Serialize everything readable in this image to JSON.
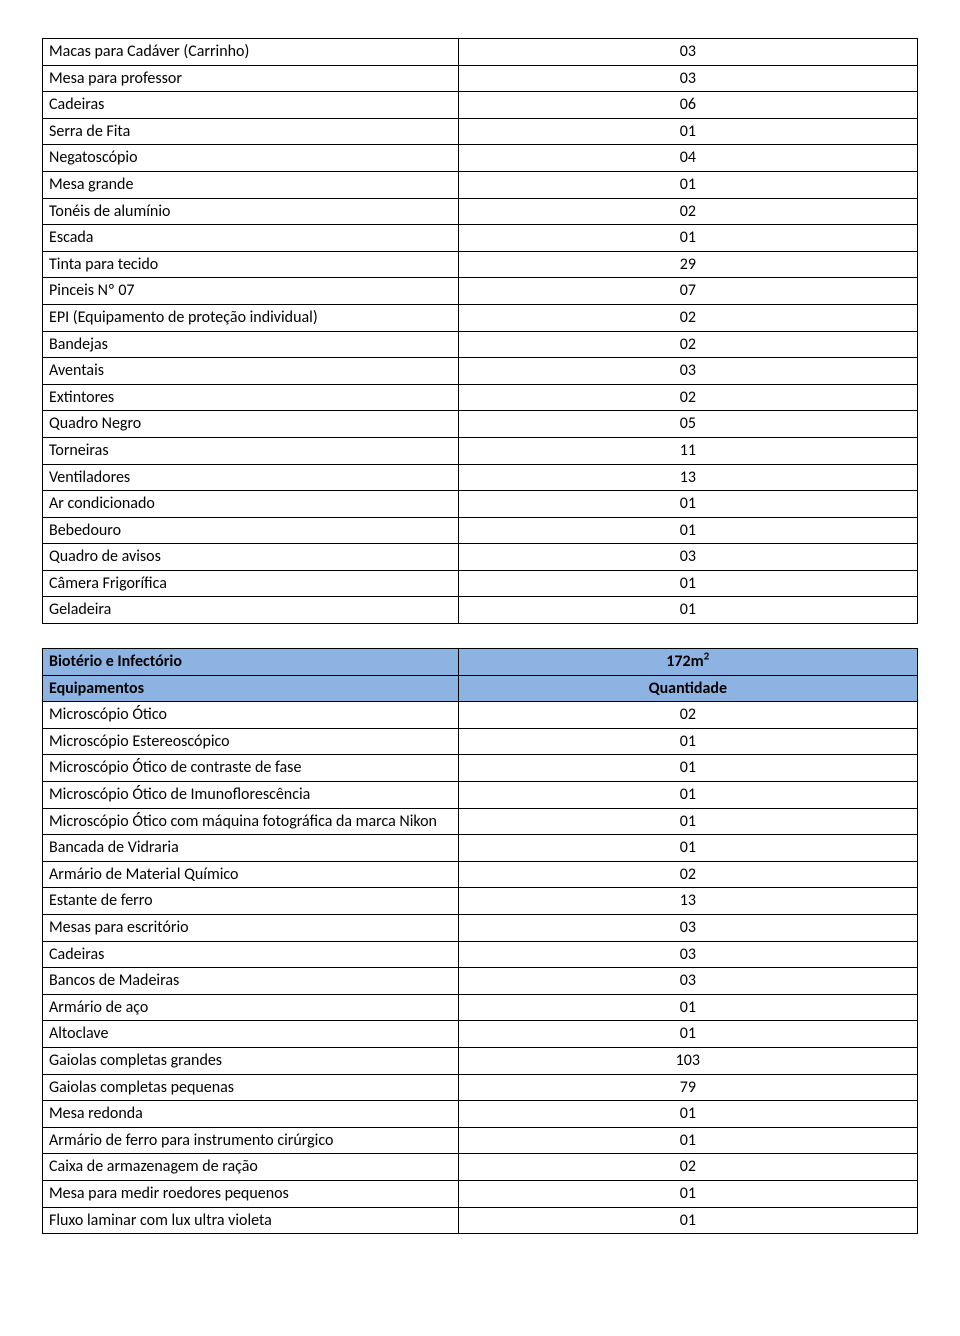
{
  "colors": {
    "header_bg": "#8db3e2",
    "border": "#000000",
    "text": "#000000",
    "background": "#ffffff"
  },
  "layout": {
    "col_left_width_pct": 47.5,
    "col_right_width_pct": 52.5,
    "font_family": "Calibri",
    "font_size_pt": 12
  },
  "table1": {
    "rows": [
      {
        "name": "Macas para Cadáver (Carrinho)",
        "qty": "03"
      },
      {
        "name": "Mesa para professor",
        "qty": "03"
      },
      {
        "name": "Cadeiras",
        "qty": "06"
      },
      {
        "name": "Serra de Fita",
        "qty": "01"
      },
      {
        "name": "Negatoscópio",
        "qty": "04"
      },
      {
        "name": "Mesa grande",
        "qty": "01"
      },
      {
        "name": "Tonéis de alumínio",
        "qty": "02"
      },
      {
        "name": "Escada",
        "qty": "01"
      },
      {
        "name": "Tinta para tecido",
        "qty": "29"
      },
      {
        "name": "Pinceis Nº 07",
        "qty": "07"
      },
      {
        "name": "EPI (Equipamento de proteção individual)",
        "qty": "02"
      },
      {
        "name": "Bandejas",
        "qty": "02"
      },
      {
        "name": "Aventais",
        "qty": "03"
      },
      {
        "name": "Extintores",
        "qty": "02"
      },
      {
        "name": "Quadro Negro",
        "qty": "05"
      },
      {
        "name": "Torneiras",
        "qty": "11"
      },
      {
        "name": "Ventiladores",
        "qty": "13"
      },
      {
        "name": "Ar condicionado",
        "qty": "01"
      },
      {
        "name": "Bebedouro",
        "qty": "01"
      },
      {
        "name": "Quadro de avisos",
        "qty": "03"
      },
      {
        "name": "Câmera Frigorífica",
        "qty": "01"
      },
      {
        "name": "Geladeira",
        "qty": "01"
      }
    ]
  },
  "table2": {
    "header": {
      "title": "Biotério e Infectório",
      "area_prefix": "172m",
      "area_sup": "2",
      "col1": "Equipamentos",
      "col2": "Quantidade"
    },
    "rows": [
      {
        "name": "Microscópio Ótico",
        "qty": "02"
      },
      {
        "name": "Microscópio Estereoscópico",
        "qty": "01"
      },
      {
        "name": "Microscópio  Ótico de contraste de fase",
        "qty": "01"
      },
      {
        "name": "Microscópio  Ótico de Imunoflorescência",
        "qty": "01"
      },
      {
        "name": "Microscópio  Ótico com máquina fotográfica da marca Nikon",
        "qty": "01"
      },
      {
        "name": "Bancada de Vidraria",
        "qty": "01"
      },
      {
        "name": "Armário de Material Químico",
        "qty": "02"
      },
      {
        "name": "Estante de ferro",
        "qty": "13"
      },
      {
        "name": "Mesas para escritório",
        "qty": "03"
      },
      {
        "name": "Cadeiras",
        "qty": "03"
      },
      {
        "name": "Bancos de Madeiras",
        "qty": "03"
      },
      {
        "name": "Armário de aço",
        "qty": "01"
      },
      {
        "name": "Altoclave",
        "qty": "01"
      },
      {
        "name": "Gaiolas completas grandes",
        "qty": "103"
      },
      {
        "name": "Gaiolas completas pequenas",
        "qty": "79"
      },
      {
        "name": "Mesa redonda",
        "qty": "01"
      },
      {
        "name": "Armário de ferro para instrumento cirúrgico",
        "qty": "01"
      },
      {
        "name": "Caixa de armazenagem de ração",
        "qty": "02"
      },
      {
        "name": "Mesa para medir roedores pequenos",
        "qty": "01"
      },
      {
        "name": "Fluxo laminar com lux ultra violeta",
        "qty": "01"
      }
    ]
  }
}
